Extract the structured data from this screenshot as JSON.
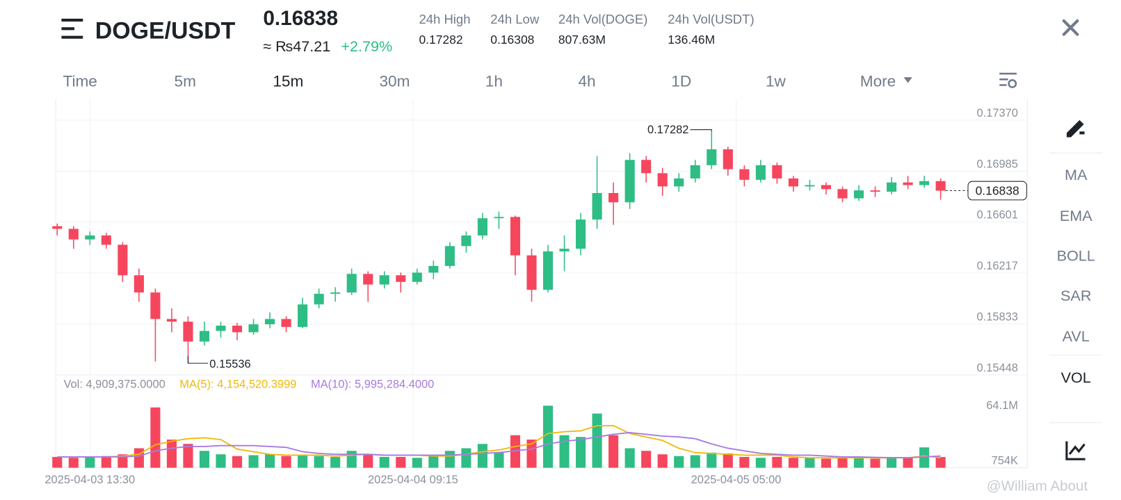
{
  "header": {
    "pair": "DOGE/USDT",
    "price": "0.16838",
    "fiat": "≈ ₨47.21",
    "change": "+2.79%"
  },
  "stats": [
    {
      "label": "24h High",
      "value": "0.17282"
    },
    {
      "label": "24h Low",
      "value": "0.16308"
    },
    {
      "label": "24h Vol(DOGE)",
      "value": "807.63M"
    },
    {
      "label": "24h Vol(USDT)",
      "value": "136.46M"
    }
  ],
  "tabs": [
    "Time",
    "5m",
    "15m",
    "30m",
    "1h",
    "4h",
    "1D",
    "1w",
    "More"
  ],
  "sidebar": [
    "MA",
    "EMA",
    "BOLL",
    "SAR",
    "AVL",
    "VOL"
  ],
  "watermark": "@William About",
  "chart_data": [
    {
      "type": "candlestick",
      "x": [
        0,
        4,
        8,
        12,
        16,
        20,
        24,
        28,
        32,
        36,
        40,
        44,
        48,
        52,
        56,
        60,
        64,
        68,
        72,
        76,
        80,
        84,
        88,
        92,
        96,
        100,
        104,
        108,
        112,
        116,
        120,
        124,
        128,
        132,
        136,
        140,
        144,
        148,
        152,
        156,
        160,
        164,
        168,
        172,
        176,
        180,
        184,
        188,
        192,
        196,
        200,
        204,
        208,
        212,
        216
      ],
      "open": [
        0.1657,
        0.1655,
        0.1647,
        0.165,
        0.1643,
        0.162,
        0.1607,
        0.1587,
        0.1585,
        0.157,
        0.1578,
        0.1582,
        0.1577,
        0.1583,
        0.1587,
        0.1581,
        0.1598,
        0.1606,
        0.1607,
        0.1621,
        0.1613,
        0.162,
        0.1615,
        0.1622,
        0.1627,
        0.1642,
        0.165,
        0.1663,
        0.1664,
        0.1635,
        0.1609,
        0.1638,
        0.164,
        0.1662,
        0.1682,
        0.1675,
        0.1707,
        0.1697,
        0.1687,
        0.1693,
        0.1703,
        0.1715,
        0.17,
        0.1692,
        0.1703,
        0.1693,
        0.1687,
        0.1688,
        0.1685,
        0.1678,
        0.1684,
        0.1683,
        0.169,
        0.1688,
        0.1691
      ],
      "high": [
        0.1659,
        0.1657,
        0.1653,
        0.1652,
        0.1645,
        0.1625,
        0.161,
        0.1595,
        0.1589,
        0.1585,
        0.1585,
        0.1584,
        0.1587,
        0.1592,
        0.1589,
        0.1603,
        0.161,
        0.1611,
        0.1625,
        0.1623,
        0.1623,
        0.1622,
        0.1625,
        0.1631,
        0.1645,
        0.1653,
        0.1667,
        0.1668,
        0.1665,
        0.164,
        0.1643,
        0.165,
        0.1667,
        0.171,
        0.169,
        0.1712,
        0.171,
        0.1701,
        0.1697,
        0.1707,
        0.17282,
        0.1717,
        0.1703,
        0.1707,
        0.1705,
        0.1695,
        0.1692,
        0.169,
        0.1687,
        0.1688,
        0.1687,
        0.1694,
        0.1695,
        0.1695,
        0.1693
      ],
      "low": [
        0.165,
        0.164,
        0.1643,
        0.164,
        0.1615,
        0.16,
        0.1555,
        0.1577,
        0.15536,
        0.1567,
        0.1573,
        0.1571,
        0.1575,
        0.158,
        0.1577,
        0.158,
        0.1595,
        0.16,
        0.1605,
        0.16,
        0.161,
        0.1607,
        0.1613,
        0.1617,
        0.1625,
        0.1637,
        0.1647,
        0.1655,
        0.162,
        0.16,
        0.1607,
        0.1623,
        0.1635,
        0.1655,
        0.1658,
        0.167,
        0.169,
        0.168,
        0.1683,
        0.169,
        0.17,
        0.1695,
        0.1687,
        0.169,
        0.1689,
        0.1683,
        0.1684,
        0.1681,
        0.1675,
        0.1676,
        0.1679,
        0.1681,
        0.1685,
        0.1686,
        0.1677
      ],
      "close": [
        0.1655,
        0.1647,
        0.165,
        0.1643,
        0.162,
        0.1607,
        0.1587,
        0.1585,
        0.157,
        0.1578,
        0.1582,
        0.1577,
        0.1583,
        0.1587,
        0.1581,
        0.1598,
        0.1606,
        0.1607,
        0.1621,
        0.1613,
        0.162,
        0.1615,
        0.1622,
        0.1627,
        0.1642,
        0.165,
        0.1663,
        0.1664,
        0.1635,
        0.1609,
        0.1638,
        0.164,
        0.1662,
        0.1682,
        0.1675,
        0.1707,
        0.1697,
        0.1687,
        0.1693,
        0.1703,
        0.1715,
        0.17,
        0.1692,
        0.1703,
        0.1693,
        0.1687,
        0.1688,
        0.1685,
        0.1678,
        0.1684,
        0.1683,
        0.169,
        0.1688,
        0.1691,
        0.16838
      ],
      "up_color": "#2ebd85",
      "down_color": "#f6465d",
      "xlim": [
        0,
        237.2
      ],
      "ylim": [
        0.15448,
        0.17532
      ],
      "yticks": [
        {
          "value": 0.1737,
          "label": "0.17370"
        },
        0.16985,
        0.16601,
        0.16217,
        0.15833,
        0.15448
      ],
      "xticks": [
        {
          "value": 8,
          "label": "2025-04-03 13:30"
        },
        {
          "value": 87,
          "label": "2025-04-04 09:15"
        },
        {
          "value": 166,
          "label": "2025-04-05 05:00"
        }
      ],
      "grid": true,
      "high_label": "0.17282",
      "low_label": "0.15536",
      "last_label": "0.16838"
    },
    {
      "type": "volume",
      "series": [
        {
          "name": "Vol: 4,909,375.0000",
          "color": "#8a909a",
          "values": [
            5,
            4,
            5,
            6,
            8,
            15,
            62,
            25,
            20,
            12,
            8,
            6,
            7,
            8,
            6,
            7,
            6,
            5,
            12,
            8,
            5,
            5,
            4,
            6,
            12,
            15,
            20,
            10,
            30,
            25,
            64,
            30,
            28,
            55,
            30,
            15,
            12,
            8,
            6,
            7,
            10,
            9,
            5,
            4,
            5,
            4,
            4,
            3,
            5,
            4,
            3,
            4,
            4,
            16,
            4.909375
          ]
        },
        {
          "name": "MA(5): 4,154,520.3999",
          "color": "#f0b90b",
          "values": [
            5,
            5,
            5,
            5,
            6,
            8,
            19,
            23,
            26,
            27,
            25,
            14,
            11,
            8,
            7,
            7,
            7,
            6,
            7,
            8,
            7,
            7,
            7,
            6,
            6,
            8,
            11,
            13,
            17,
            20,
            32,
            34,
            35,
            41,
            41,
            32,
            28,
            24,
            15,
            10,
            9,
            8,
            7,
            7,
            7,
            5,
            4,
            4,
            4,
            4,
            4,
            4,
            4,
            6,
            4.15452
          ]
        },
        {
          "name": "MA(10): 5,995,284.4000",
          "color": "#a77be0",
          "values": [
            5,
            5,
            5,
            5,
            5,
            6,
            12,
            15,
            17,
            17,
            18,
            18,
            18,
            17,
            16,
            11,
            9,
            8,
            8,
            8,
            7,
            7,
            7,
            7,
            7,
            8,
            9,
            10,
            12,
            14,
            20,
            23,
            25,
            28,
            31,
            33,
            31,
            29,
            28,
            26,
            20,
            15,
            12,
            9,
            8,
            7,
            7,
            6,
            5,
            5,
            4.5,
            4.2,
            4,
            5,
            5.995284
          ]
        }
      ],
      "ylim": [
        -7.47,
        83
      ],
      "yticks": [
        {
          "value": 64.1,
          "label": "64.1M"
        },
        {
          "value": 0.754,
          "label": "754K"
        }
      ]
    }
  ]
}
